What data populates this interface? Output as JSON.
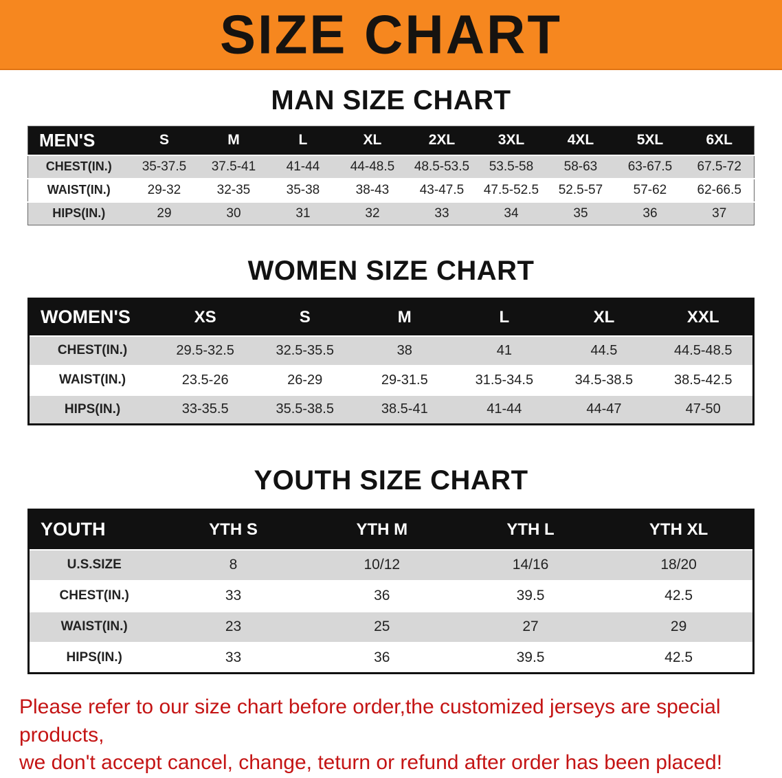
{
  "banner": {
    "title": "SIZE CHART"
  },
  "colors": {
    "banner_orange": "#f6871f",
    "table_header_black": "#111111",
    "row_stripe_gray": "#d7d7d7",
    "footer_red": "#c41414"
  },
  "sections": [
    {
      "heading": "MAN SIZE CHART",
      "table": {
        "header": [
          "MEN'S",
          "S",
          "M",
          "L",
          "XL",
          "2XL",
          "3XL",
          "4XL",
          "5XL",
          "6XL"
        ],
        "rows": [
          [
            "CHEST(IN.)",
            "35-37.5",
            "37.5-41",
            "41-44",
            "44-48.5",
            "48.5-53.5",
            "53.5-58",
            "58-63",
            "63-67.5",
            "67.5-72"
          ],
          [
            "WAIST(IN.)",
            "29-32",
            "32-35",
            "35-38",
            "38-43",
            "43-47.5",
            "47.5-52.5",
            "52.5-57",
            "57-62",
            "62-66.5"
          ],
          [
            "HIPS(IN.)",
            "29",
            "30",
            "31",
            "32",
            "33",
            "34",
            "35",
            "36",
            "37"
          ]
        ]
      }
    },
    {
      "heading": "WOMEN SIZE CHART",
      "table": {
        "header": [
          "WOMEN'S",
          "XS",
          "S",
          "M",
          "L",
          "XL",
          "XXL"
        ],
        "rows": [
          [
            "CHEST(IN.)",
            "29.5-32.5",
            "32.5-35.5",
            "38",
            "41",
            "44.5",
            "44.5-48.5"
          ],
          [
            "WAIST(IN.)",
            "23.5-26",
            "26-29",
            "29-31.5",
            "31.5-34.5",
            "34.5-38.5",
            "38.5-42.5"
          ],
          [
            "HIPS(IN.)",
            "33-35.5",
            "35.5-38.5",
            "38.5-41",
            "41-44",
            "44-47",
            "47-50"
          ]
        ]
      }
    },
    {
      "heading": "YOUTH SIZE CHART",
      "table": {
        "header": [
          "YOUTH",
          "YTH S",
          "YTH M",
          "YTH L",
          "YTH XL"
        ],
        "rows": [
          [
            "U.S.SIZE",
            "8",
            "10/12",
            "14/16",
            "18/20"
          ],
          [
            "CHEST(IN.)",
            "33",
            "36",
            "39.5",
            "42.5"
          ],
          [
            "WAIST(IN.)",
            "23",
            "25",
            "27",
            "29"
          ],
          [
            "HIPS(IN.)",
            "33",
            "36",
            "39.5",
            "42.5"
          ]
        ]
      }
    }
  ],
  "footer": {
    "line1": "Please refer to our size chart before order,the customized jerseys are special products,",
    "line2": "we don't accept cancel, change, teturn or refund after order has been placed!"
  }
}
